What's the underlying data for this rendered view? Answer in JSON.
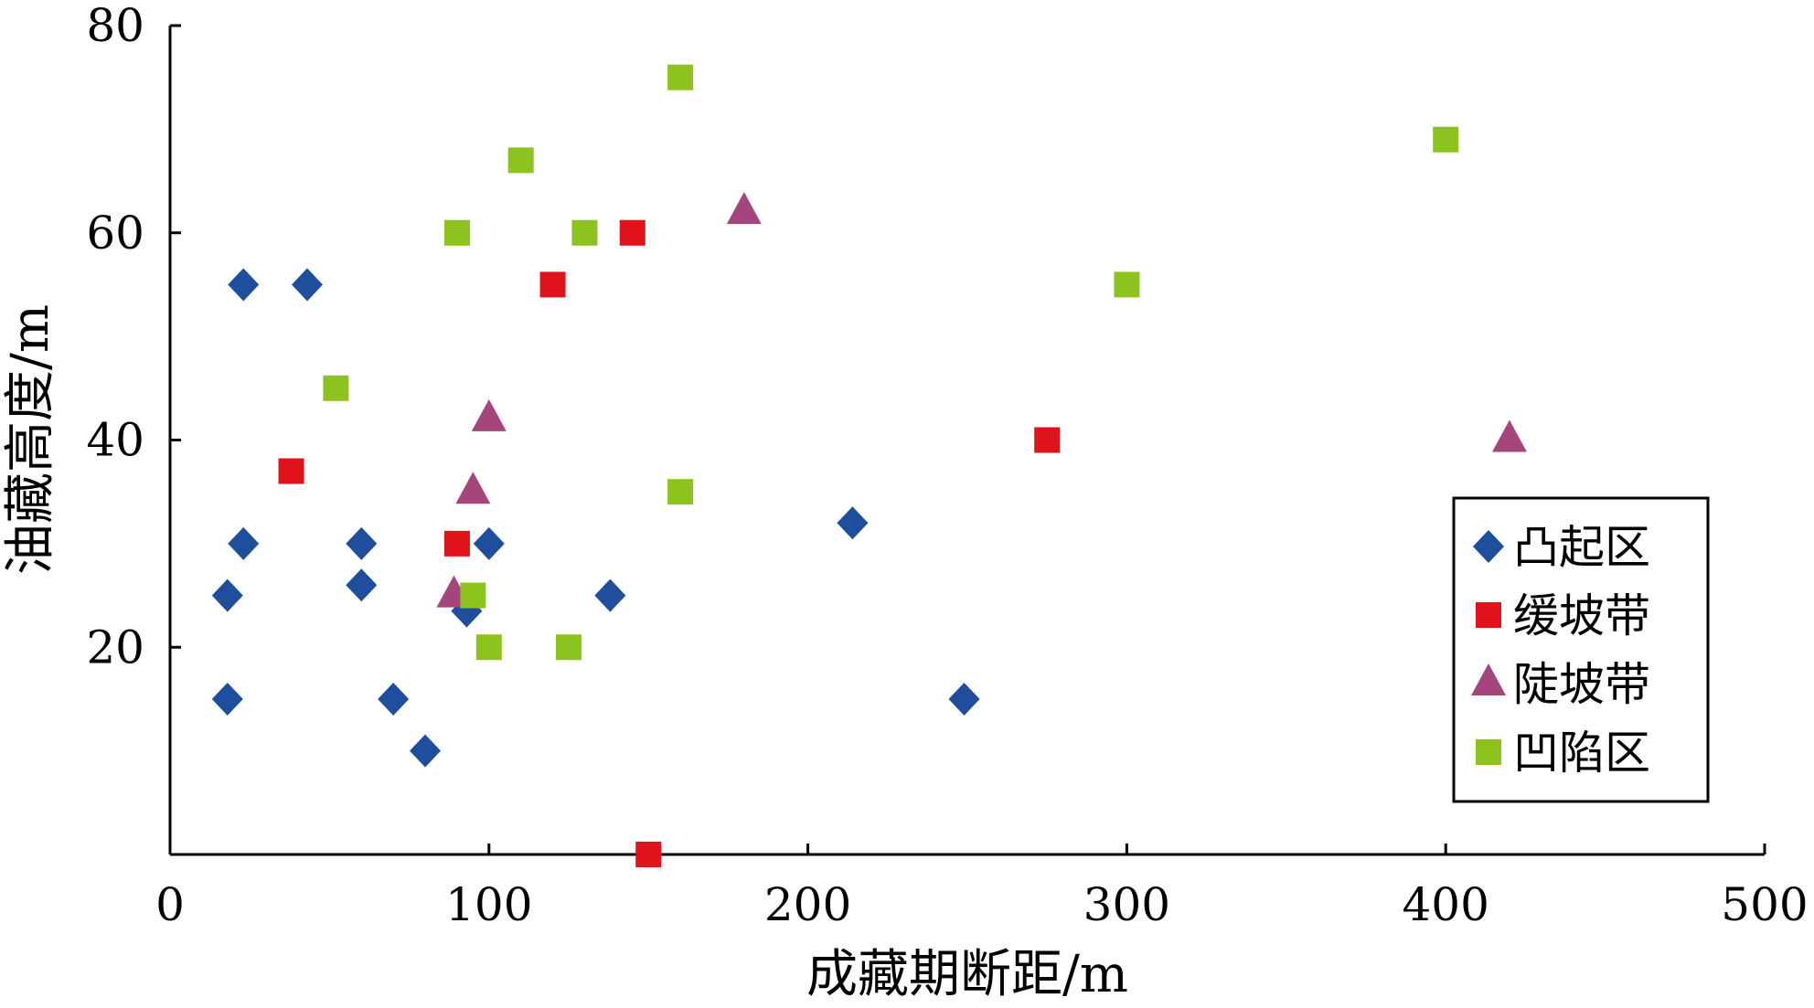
{
  "chart_data": {
    "type": "scatter",
    "xlabel": "成藏期断距/m",
    "ylabel": "油藏高度/m",
    "xlim": [
      0,
      500
    ],
    "ylim": [
      0,
      80
    ],
    "xticks": [
      "0",
      "100",
      "200",
      "300",
      "400",
      "500"
    ],
    "yticks": [
      "20",
      "40",
      "60",
      "80"
    ],
    "grid": false,
    "legend_position": "bottom-right",
    "series": [
      {
        "name": "凸起区",
        "marker": "diamond",
        "color": "#1f4e9c",
        "points": [
          [
            23,
            55
          ],
          [
            43,
            55
          ],
          [
            23,
            30
          ],
          [
            60,
            30
          ],
          [
            60,
            26
          ],
          [
            18,
            25
          ],
          [
            18,
            15
          ],
          [
            70,
            15
          ],
          [
            80,
            10
          ],
          [
            93,
            23.5
          ],
          [
            100,
            30
          ],
          [
            138,
            25
          ],
          [
            214,
            32
          ],
          [
            249,
            15
          ]
        ]
      },
      {
        "name": "缓坡带",
        "marker": "square",
        "color": "#e0121b",
        "points": [
          [
            38,
            37
          ],
          [
            90,
            30
          ],
          [
            120,
            55
          ],
          [
            145,
            60
          ],
          [
            150,
            0
          ],
          [
            275,
            40
          ]
        ]
      },
      {
        "name": "陡坡带",
        "marker": "triangle",
        "color": "#a4467c",
        "points": [
          [
            89,
            25
          ],
          [
            95,
            35
          ],
          [
            100,
            42
          ],
          [
            180,
            62
          ],
          [
            420,
            40
          ]
        ]
      },
      {
        "name": "凹陷区",
        "marker": "square",
        "color": "#8cc31f",
        "points": [
          [
            52,
            45
          ],
          [
            90,
            60
          ],
          [
            95,
            25
          ],
          [
            100,
            20
          ],
          [
            110,
            67
          ],
          [
            125,
            20
          ],
          [
            130,
            60
          ],
          [
            160,
            75
          ],
          [
            160,
            35
          ],
          [
            300,
            55
          ],
          [
            400,
            69
          ]
        ]
      }
    ]
  }
}
